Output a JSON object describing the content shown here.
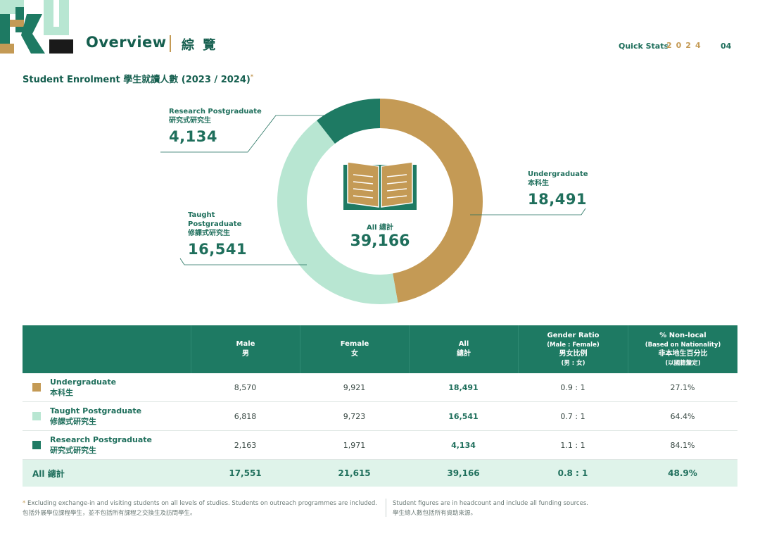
{
  "header": {
    "title": "Overview",
    "subtitle": "綜 覽",
    "quick_stats_label": "Quick Stats",
    "year": "2024",
    "page": "04",
    "logo_text": "HKU"
  },
  "section": {
    "title": "Student Enrolment 學生就讀人數 (2023 / 2024)",
    "footnote_mark": "*"
  },
  "colors": {
    "undergraduate": "#c49a55",
    "taught_postgraduate": "#b8e6d2",
    "research_postgraduate": "#1e7a63",
    "header_bg": "#1e7a63",
    "total_row_bg": "#dff3ea"
  },
  "chart_data": {
    "type": "pie",
    "donut": true,
    "center_label": "All 總計",
    "center_value": "39,166",
    "total": 39166,
    "slices": [
      {
        "en": "Undergraduate",
        "zh": "本科生",
        "value": 18491,
        "label": "18,491",
        "color": "#c49a55"
      },
      {
        "en": "Taught Postgraduate",
        "zh": "修課式研究生",
        "value": 16541,
        "label": "16,541",
        "color": "#b8e6d2"
      },
      {
        "en": "Research Postgraduate",
        "zh": "研究式研究生",
        "value": 4134,
        "label": "4,134",
        "color": "#1e7a63"
      }
    ],
    "center_icon": "book-icon"
  },
  "callouts": {
    "research": {
      "en": "Research Postgraduate",
      "zh": "研究式研究生",
      "num": "4,134"
    },
    "taught": {
      "en1": "Taught",
      "en2": "Postgraduate",
      "zh": "修課式研究生",
      "num": "16,541"
    },
    "under": {
      "en": "Undergraduate",
      "zh": "本科生",
      "num": "18,491"
    }
  },
  "table": {
    "headers": {
      "male": {
        "en": "Male",
        "zh": "男"
      },
      "female": {
        "en": "Female",
        "zh": "女"
      },
      "all": {
        "en": "All",
        "zh": "總計"
      },
      "ratio": {
        "en": "Gender Ratio",
        "sub": "(Male : Female)",
        "zh": "男女比例",
        "zh_sub": "(男 : 女)"
      },
      "nonlocal": {
        "en": "% Non-local",
        "sub": "(Based on Nationality)",
        "zh": "非本地生百分比",
        "zh_sub": "(以國籍釐定)"
      }
    },
    "rows": [
      {
        "en": "Undergraduate",
        "zh": "本科生",
        "male": "8,570",
        "female": "9,921",
        "all": "18,491",
        "ratio": "0.9 : 1",
        "nonlocal": "27.1%"
      },
      {
        "en": "Taught Postgraduate",
        "zh": "修課式研究生",
        "male": "6,818",
        "female": "9,723",
        "all": "16,541",
        "ratio": "0.7 : 1",
        "nonlocal": "64.4%"
      },
      {
        "en": "Research Postgraduate",
        "zh": "研究式研究生",
        "male": "2,163",
        "female": "1,971",
        "all": "4,134",
        "ratio": "1.1 : 1",
        "nonlocal": "84.1%"
      }
    ],
    "total": {
      "label": "All 總計",
      "male": "17,551",
      "female": "21,615",
      "all": "39,166",
      "ratio": "0.8 : 1",
      "nonlocal": "48.9%"
    }
  },
  "footnotes": {
    "left_star": "*",
    "left_en": "Excluding exchange-in and visiting students on all levels of studies. Students on outreach programmes are included.",
    "left_zh": "包括外展學位課程學生，並不包括所有課程之交換生及訪問學生。",
    "right_en": "Student figures are in headcount and include all funding sources.",
    "right_zh": "學生總人數包括所有資助來源。"
  }
}
